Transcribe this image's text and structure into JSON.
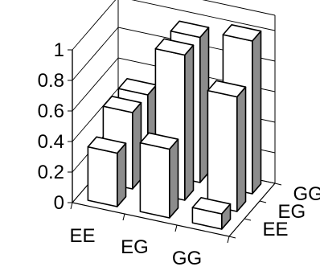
{
  "chart_data": {
    "type": "bar",
    "subtype": "3d-column-grid",
    "title": "",
    "xlabel": "",
    "ylabel": "",
    "zlim": [
      0,
      1
    ],
    "z_ticks": [
      "0",
      "0.2",
      "0.4",
      "0.6",
      "0.8",
      "1"
    ],
    "x_categories": [
      "EE",
      "EG",
      "GG"
    ],
    "depth_categories": [
      "EE",
      "EG",
      "GG"
    ],
    "grid": true,
    "legend": "none",
    "values": [
      [
        0.35,
        0.5,
        0.5
      ],
      [
        0.45,
        0.95,
        0.95
      ],
      [
        0.1,
        0.75,
        1.0
      ]
    ],
    "colors": {
      "bar_front": "#ffffff",
      "bar_top": "#ffffff",
      "bar_side": "#8c8c8c",
      "lines": "#000000"
    }
  }
}
